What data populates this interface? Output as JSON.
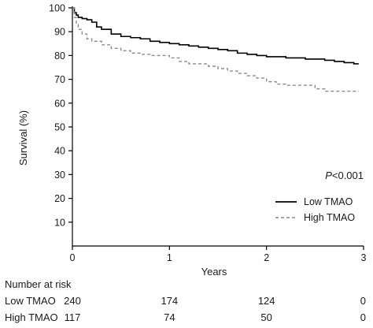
{
  "chart_data": {
    "type": "line",
    "subtype": "kaplan-meier",
    "xlabel": "Years",
    "ylabel": "Survival (%)",
    "xlim": [
      0,
      3
    ],
    "ylim": [
      0,
      100
    ],
    "x_ticks": [
      "0",
      "1",
      "2",
      "3"
    ],
    "y_ticks": [
      "10",
      "20",
      "30",
      "40",
      "50",
      "60",
      "70",
      "80",
      "90",
      "100"
    ],
    "grid": false,
    "legend_position": "bottom-right",
    "annotation": {
      "italic": "P",
      "rest": "<0.001"
    },
    "series": [
      {
        "name": "Low TMAO",
        "style": "solid",
        "color": "#000000",
        "x": [
          0,
          0.02,
          0.04,
          0.06,
          0.1,
          0.15,
          0.2,
          0.25,
          0.3,
          0.4,
          0.5,
          0.6,
          0.7,
          0.8,
          0.9,
          1.0,
          1.1,
          1.2,
          1.3,
          1.4,
          1.5,
          1.6,
          1.7,
          1.8,
          1.9,
          2.0,
          2.2,
          2.4,
          2.6,
          2.7,
          2.8,
          2.9,
          2.95
        ],
        "y": [
          100,
          98,
          97,
          96,
          95.5,
          95,
          94,
          92,
          91,
          89,
          88,
          87.5,
          87,
          86,
          85.5,
          85,
          84.5,
          84,
          83.5,
          83,
          82.5,
          82,
          81,
          80.5,
          80,
          79.5,
          79,
          78.5,
          78,
          77.5,
          77,
          76.5,
          76.5
        ]
      },
      {
        "name": "High TMAO",
        "style": "dashed",
        "color": "#8c8c8c",
        "x": [
          0,
          0.02,
          0.04,
          0.06,
          0.1,
          0.15,
          0.2,
          0.3,
          0.4,
          0.5,
          0.6,
          0.7,
          0.8,
          1.0,
          1.1,
          1.2,
          1.4,
          1.5,
          1.6,
          1.7,
          1.8,
          1.9,
          2.0,
          2.1,
          2.2,
          2.4,
          2.5,
          2.6,
          2.7,
          2.95
        ],
        "y": [
          100,
          96,
          93,
          91,
          89,
          87,
          86,
          84.5,
          83,
          82,
          81,
          80.5,
          80,
          79,
          77.5,
          76.5,
          75.5,
          74.5,
          73.5,
          72.5,
          71.5,
          70.5,
          69,
          68,
          67.5,
          67.5,
          66,
          65,
          65,
          65
        ]
      }
    ],
    "risk_table": {
      "title": "Number at risk",
      "rows": [
        {
          "label": "Low TMAO",
          "values": [
            "240",
            "174",
            "124",
            "0"
          ]
        },
        {
          "label": "High TMAO",
          "values": [
            "117",
            "74",
            "50",
            "0"
          ]
        }
      ]
    }
  }
}
